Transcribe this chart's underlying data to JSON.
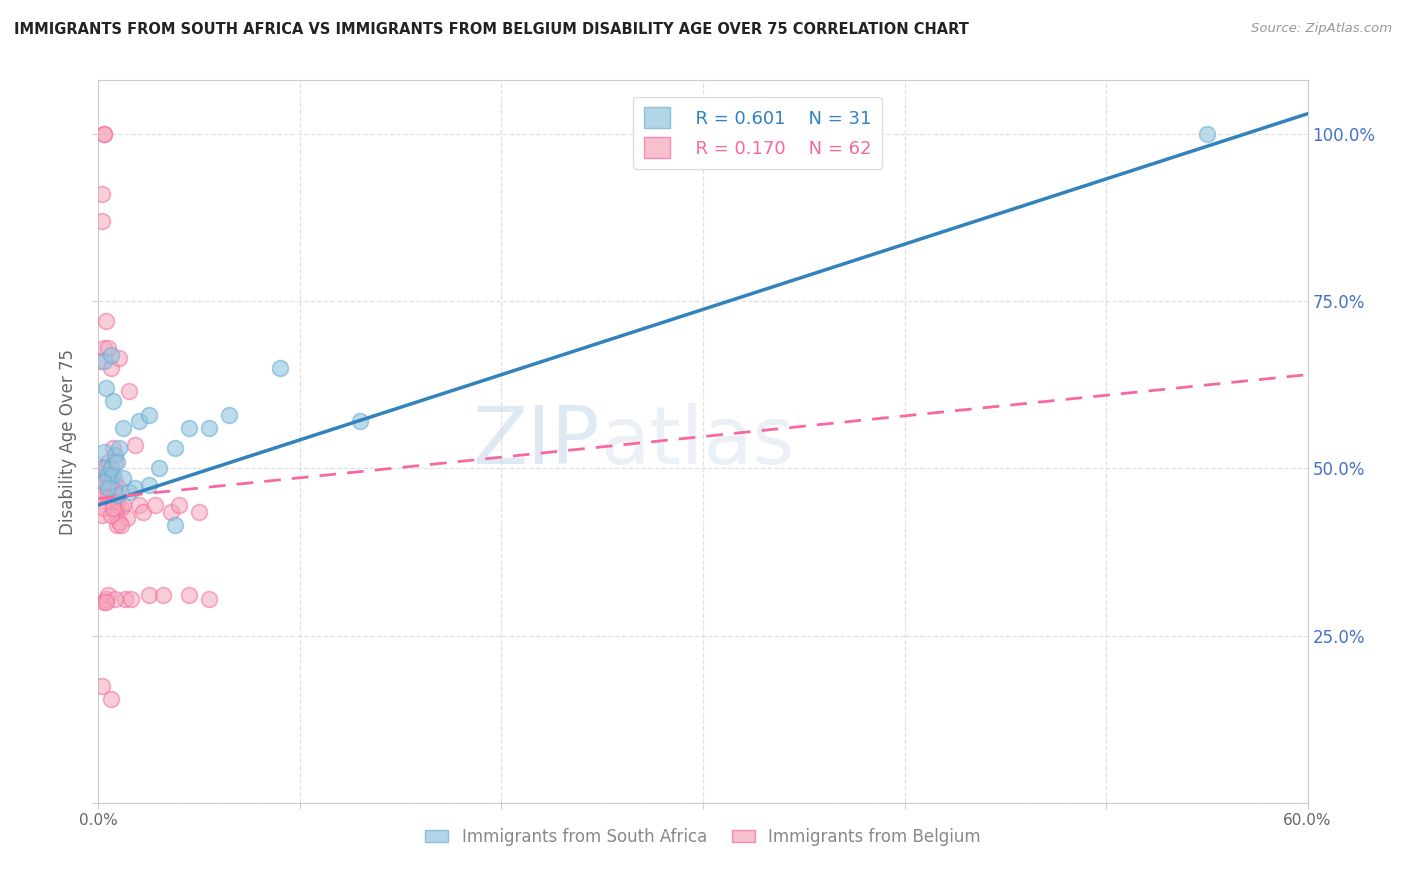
{
  "title": "IMMIGRANTS FROM SOUTH AFRICA VS IMMIGRANTS FROM BELGIUM DISABILITY AGE OVER 75 CORRELATION CHART",
  "source": "Source: ZipAtlas.com",
  "ylabel": "Disability Age Over 75",
  "watermark_zip": "ZIP",
  "watermark_atlas": "atlas",
  "legend_R_blue": "R = 0.601",
  "legend_N_blue": "N = 31",
  "legend_R_pink": "R = 0.170",
  "legend_N_pink": "N = 62",
  "blue_scatter_color": "#92c5de",
  "blue_scatter_edge": "#6baed6",
  "pink_scatter_color": "#f4a6b8",
  "pink_scatter_edge": "#f768a1",
  "blue_line_color": "#3182bd",
  "pink_line_color": "#f768a1",
  "grid_color": "#e0e0e0",
  "title_color": "#222222",
  "ylabel_color": "#666666",
  "right_axis_color": "#4472c4",
  "source_color": "#999999",
  "xlim": [
    0.0,
    0.6
  ],
  "ylim": [
    0.0,
    1.08
  ],
  "blue_line_x0": 0.0,
  "blue_line_y0": 0.445,
  "blue_line_x1": 0.6,
  "blue_line_y1": 1.03,
  "pink_line_x0": 0.0,
  "pink_line_y0": 0.455,
  "pink_line_x1": 0.6,
  "pink_line_y1": 0.64,
  "south_africa_x": [
    0.002,
    0.003,
    0.003,
    0.004,
    0.005,
    0.006,
    0.006,
    0.007,
    0.008,
    0.009,
    0.01,
    0.012,
    0.015,
    0.02,
    0.025,
    0.03,
    0.038,
    0.045,
    0.055,
    0.065,
    0.09,
    0.13,
    0.003,
    0.005,
    0.007,
    0.009,
    0.012,
    0.018,
    0.025,
    0.038,
    0.55
  ],
  "south_africa_y": [
    0.5,
    0.525,
    0.66,
    0.62,
    0.49,
    0.5,
    0.67,
    0.49,
    0.52,
    0.46,
    0.53,
    0.56,
    0.465,
    0.57,
    0.58,
    0.5,
    0.53,
    0.56,
    0.56,
    0.58,
    0.65,
    0.57,
    0.48,
    0.47,
    0.6,
    0.51,
    0.485,
    0.47,
    0.475,
    0.415,
    1.0
  ],
  "belgium_x": [
    0.001,
    0.001,
    0.002,
    0.002,
    0.002,
    0.003,
    0.003,
    0.003,
    0.004,
    0.004,
    0.005,
    0.005,
    0.005,
    0.006,
    0.006,
    0.007,
    0.007,
    0.008,
    0.008,
    0.009,
    0.009,
    0.01,
    0.01,
    0.011,
    0.012,
    0.013,
    0.014,
    0.015,
    0.016,
    0.018,
    0.02,
    0.022,
    0.025,
    0.028,
    0.032,
    0.036,
    0.04,
    0.045,
    0.05,
    0.055,
    0.002,
    0.003,
    0.004,
    0.005,
    0.006,
    0.007,
    0.008,
    0.009,
    0.01,
    0.011,
    0.001,
    0.002,
    0.003,
    0.003,
    0.004,
    0.005,
    0.006,
    0.007,
    0.008,
    0.004,
    0.002,
    0.006
  ],
  "belgium_y": [
    0.48,
    0.66,
    0.91,
    0.5,
    0.87,
    1.0,
    1.0,
    0.68,
    0.72,
    0.5,
    0.68,
    0.51,
    0.46,
    0.49,
    0.65,
    0.53,
    0.47,
    0.48,
    0.51,
    0.44,
    0.45,
    0.47,
    0.665,
    0.44,
    0.445,
    0.305,
    0.425,
    0.615,
    0.305,
    0.535,
    0.445,
    0.435,
    0.31,
    0.445,
    0.31,
    0.435,
    0.445,
    0.31,
    0.435,
    0.305,
    0.475,
    0.48,
    0.49,
    0.455,
    0.48,
    0.45,
    0.435,
    0.415,
    0.42,
    0.415,
    0.46,
    0.43,
    0.3,
    0.44,
    0.305,
    0.31,
    0.43,
    0.44,
    0.305,
    0.3,
    0.175,
    0.155
  ]
}
